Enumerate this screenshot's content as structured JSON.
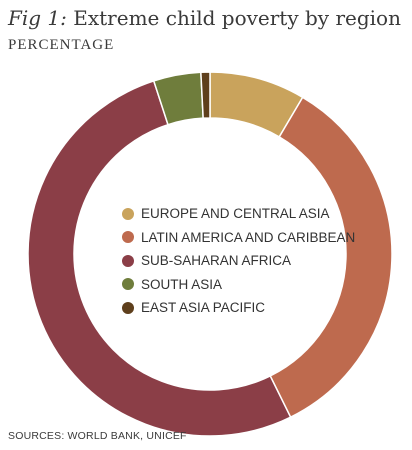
{
  "header": {
    "title_prefix": "Fig 1:",
    "title_text": "Extreme child poverty by region",
    "subtitle": "PERCENTAGE"
  },
  "source": "SOURCES: WORLD BANK, UNICEF",
  "chart_data": {
    "type": "pie",
    "style": "donut",
    "title": "Extreme child poverty by region",
    "subtitle": "PERCENTAGE",
    "legend_position": "center",
    "categories": [
      "EUROPE AND CENTRAL ASIA",
      "LATIN AMERICA AND CARIBBEAN",
      "SUB-SAHARAN AFRICA",
      "SOUTH ASIA",
      "EAST ASIA PACIFIC"
    ],
    "values": [
      8.5,
      34.2,
      52.3,
      4.2,
      0.8
    ],
    "colors": [
      "#c9a35c",
      "#be6a4e",
      "#8b3e47",
      "#6f7d3c",
      "#5e3f1c"
    ]
  }
}
